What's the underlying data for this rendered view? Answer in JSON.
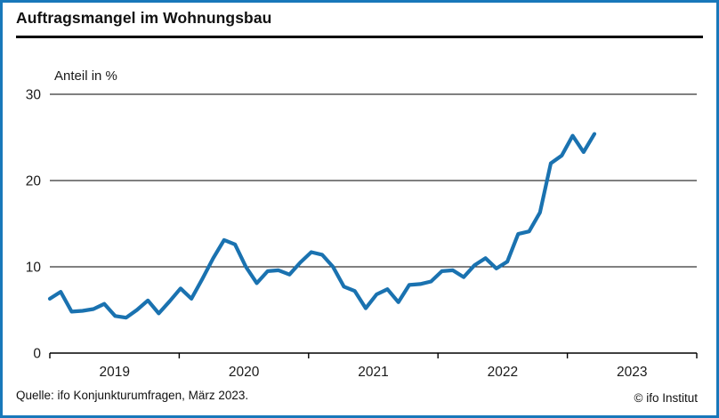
{
  "frame": {
    "border_color": "#1878ba",
    "background": "#ffffff"
  },
  "header": {
    "title": "Auftragsmangel im Wohnungsbau"
  },
  "chart": {
    "subtitle": "Anteil in %"
  },
  "footer": {
    "source": "Quelle: ifo Konjunkturumfragen, März 2023.",
    "copyright": "© ifo Institut"
  },
  "chart_data": {
    "type": "line",
    "title": "Auftragsmangel im Wohnungsbau",
    "ylabel": "Anteil in %",
    "ylim": [
      0,
      30
    ],
    "yticks": [
      0,
      10,
      20,
      30
    ],
    "grid": "horizontal-black-lines-at-10-20-30",
    "legend": "none",
    "line_color": "#1a72b0",
    "axis_color": "#000000",
    "x_year_boundaries": [
      2019,
      2020,
      2021,
      2022,
      2023,
      2024
    ],
    "x_year_labels": [
      "2019",
      "2020",
      "2021",
      "2022",
      "2023"
    ],
    "months": [
      "2019-01",
      "2019-02",
      "2019-03",
      "2019-04",
      "2019-05",
      "2019-06",
      "2019-07",
      "2019-08",
      "2019-09",
      "2019-10",
      "2019-11",
      "2019-12",
      "2020-01",
      "2020-02",
      "2020-03",
      "2020-04",
      "2020-05",
      "2020-06",
      "2020-07",
      "2020-08",
      "2020-09",
      "2020-10",
      "2020-11",
      "2020-12",
      "2021-01",
      "2021-02",
      "2021-03",
      "2021-04",
      "2021-05",
      "2021-06",
      "2021-07",
      "2021-08",
      "2021-09",
      "2021-10",
      "2021-11",
      "2021-12",
      "2022-01",
      "2022-02",
      "2022-03",
      "2022-04",
      "2022-05",
      "2022-06",
      "2022-07",
      "2022-08",
      "2022-09",
      "2022-10",
      "2022-11",
      "2022-12",
      "2023-01",
      "2023-02",
      "2023-03"
    ],
    "values": [
      6.3,
      7.1,
      4.8,
      4.9,
      5.1,
      5.7,
      4.3,
      4.1,
      5.0,
      6.1,
      4.6,
      6.0,
      7.5,
      6.3,
      8.6,
      11.0,
      13.1,
      12.6,
      10.0,
      8.1,
      9.5,
      9.6,
      9.1,
      10.5,
      11.7,
      11.4,
      10.0,
      7.7,
      7.2,
      5.2,
      6.8,
      7.4,
      5.9,
      7.9,
      8.0,
      8.3,
      9.5,
      9.6,
      8.8,
      10.2,
      11.0,
      9.8,
      10.6,
      13.8,
      14.1,
      16.3,
      22.0,
      22.9,
      25.2,
      23.3,
      25.4
    ]
  }
}
